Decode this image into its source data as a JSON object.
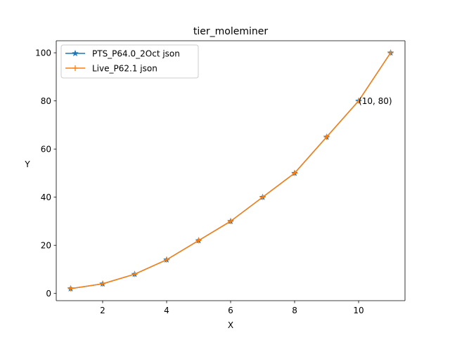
{
  "chart_data": {
    "type": "line",
    "title": "tier_moleminer",
    "xlabel": "X",
    "ylabel": "Y",
    "xlim": [
      0.55,
      11.45
    ],
    "ylim": [
      -3,
      105
    ],
    "xticks": [
      2,
      4,
      6,
      8,
      10
    ],
    "yticks": [
      0,
      20,
      40,
      60,
      80,
      100
    ],
    "grid": false,
    "legend_position": "upper-left",
    "series": [
      {
        "name": "PTS_P64.0_2Oct json",
        "marker": "star",
        "color": "#1f77b4",
        "x": [
          1,
          2,
          3,
          4,
          5,
          6,
          7,
          8,
          9,
          10,
          11
        ],
        "y": [
          2,
          4,
          8,
          14,
          22,
          30,
          40,
          50,
          65,
          80,
          100
        ]
      },
      {
        "name": "Live_P62.1 json",
        "marker": "plus",
        "color": "#ff7f0e",
        "x": [
          1,
          2,
          3,
          4,
          5,
          6,
          7,
          8,
          9,
          10,
          11
        ],
        "y": [
          2,
          4,
          8,
          14,
          22,
          30,
          40,
          50,
          65,
          80,
          100
        ]
      }
    ],
    "annotations": [
      {
        "text": "(10, 80)",
        "x": 10,
        "y": 80
      }
    ]
  }
}
